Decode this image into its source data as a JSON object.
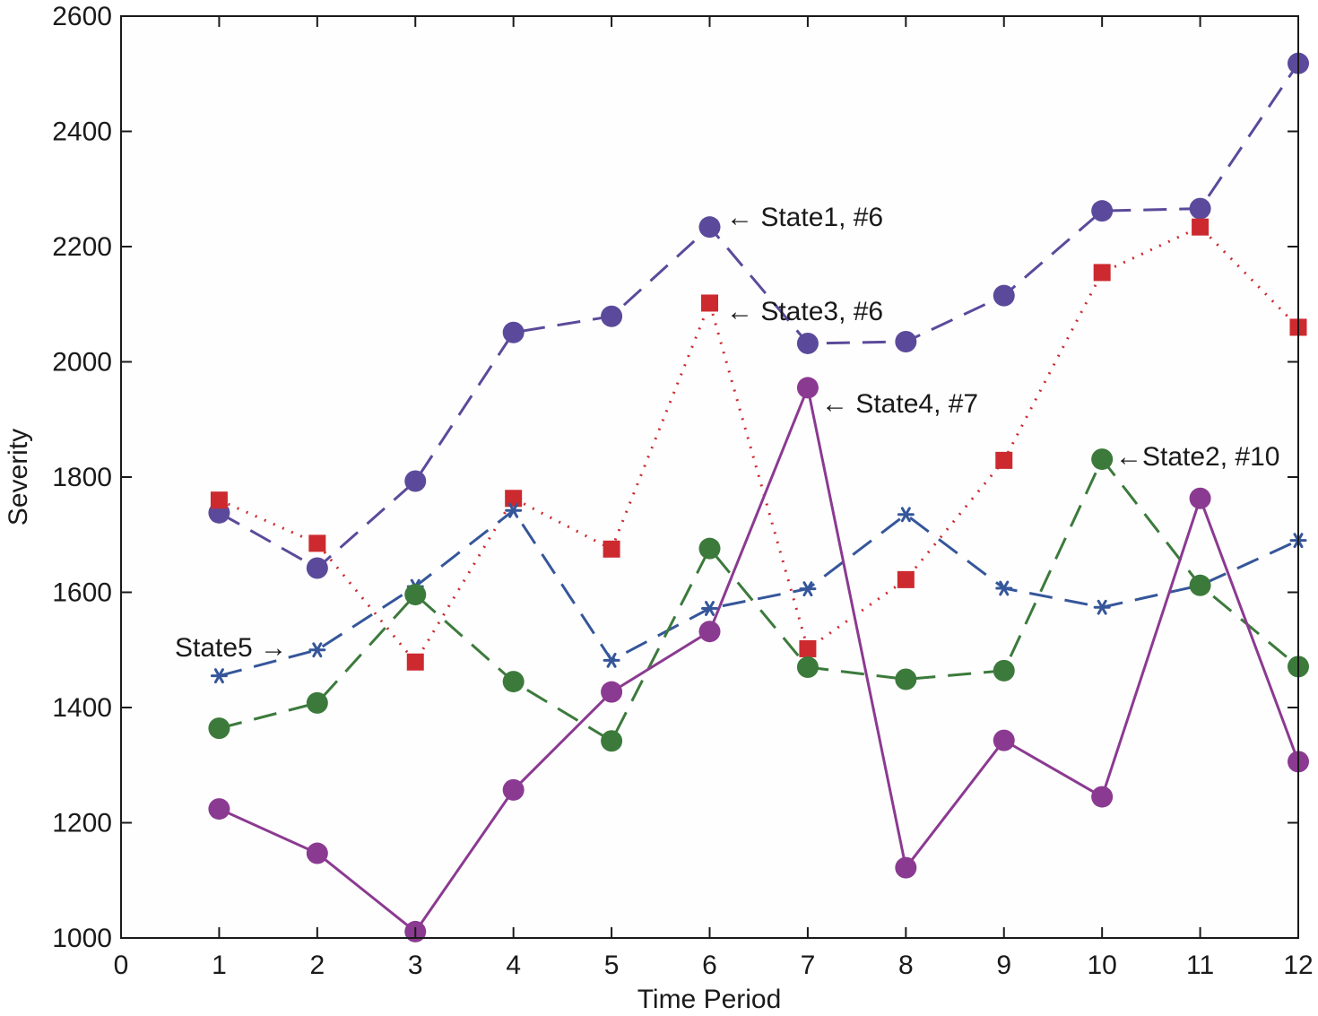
{
  "chart_data": {
    "type": "line",
    "title": "",
    "xlabel": "Time Period",
    "ylabel": "Severity",
    "xlim": [
      0,
      12
    ],
    "ylim": [
      1000,
      2600
    ],
    "xticks": [
      0,
      1,
      2,
      3,
      4,
      5,
      6,
      7,
      8,
      9,
      10,
      11,
      12
    ],
    "yticks": [
      1000,
      1200,
      1400,
      1600,
      1800,
      2000,
      2200,
      2400,
      2600
    ],
    "grid": false,
    "x": [
      1,
      2,
      3,
      4,
      5,
      6,
      7,
      8,
      9,
      10,
      11,
      12
    ],
    "series": [
      {
        "values": [
          1738,
          1642,
          1793,
          2051,
          2079,
          2234,
          2032,
          2035,
          2115,
          2262,
          2266,
          2518
        ],
        "color": "#5b4a9b",
        "line": "dashed",
        "marker": "circle"
      },
      {
        "values": [
          1760,
          1685,
          1479,
          1763,
          1675,
          2102,
          1502,
          1622,
          1829,
          2155,
          2234,
          2060
        ],
        "color": "#cc2a2f",
        "line": "dotted",
        "marker": "square"
      },
      {
        "values": [
          1455,
          1500,
          1610,
          1742,
          1482,
          1572,
          1606,
          1735,
          1607,
          1574,
          1612,
          1690
        ],
        "color": "#35569a",
        "line": "dashed",
        "marker": "star"
      },
      {
        "values": [
          1364,
          1408,
          1596,
          1445,
          1342,
          1676,
          1470,
          1449,
          1464,
          1831,
          1612,
          1471
        ],
        "color": "#3c7a3c",
        "line": "dashed",
        "marker": "circle"
      },
      {
        "values": [
          1224,
          1147,
          1011,
          1257,
          1427,
          1532,
          1955,
          1122,
          1343,
          1245,
          1763,
          1306
        ],
        "color": "#8b3a91",
        "line": "solid",
        "marker": "circle"
      }
    ],
    "annotations": [
      {
        "text": "← State1, #6"
      },
      {
        "text": "← State3, #6"
      },
      {
        "text": "← State4, #7"
      },
      {
        "text": "←State2, #10"
      },
      {
        "text": "State5 →"
      }
    ]
  }
}
